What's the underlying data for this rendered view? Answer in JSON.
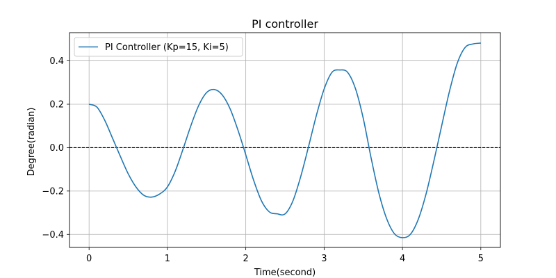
{
  "chart_data": {
    "type": "line",
    "title": "PI controller",
    "xlabel": "Time(second)",
    "ylabel": "Degree(radian)",
    "xlim": [
      -0.25,
      5.25
    ],
    "ylim": [
      -0.46,
      0.53
    ],
    "xticks": [
      0,
      1,
      2,
      3,
      4,
      5
    ],
    "xtick_labels": [
      "0",
      "1",
      "2",
      "3",
      "4",
      "5"
    ],
    "yticks": [
      -0.4,
      -0.2,
      0.0,
      0.2,
      0.4
    ],
    "ytick_labels": [
      "−0.4",
      "−0.2",
      "0.0",
      "0.2",
      "0.4"
    ],
    "grid": true,
    "legend_position": "top-left",
    "reference_line": {
      "y": 0.0,
      "style": "dashed",
      "color": "#000000"
    },
    "series": [
      {
        "name": "PI Controller (Kp=15, Ki=5)",
        "color": "#1f77b4",
        "x": [
          0,
          0.1,
          0.2,
          0.3,
          0.4,
          0.5,
          0.6,
          0.7,
          0.8,
          0.9,
          1.0,
          1.1,
          1.2,
          1.3,
          1.4,
          1.5,
          1.6,
          1.7,
          1.8,
          1.9,
          2.0,
          2.1,
          2.2,
          2.3,
          2.4,
          2.5,
          2.6,
          2.7,
          2.8,
          2.9,
          3.0,
          3.1,
          3.2,
          3.3,
          3.4,
          3.5,
          3.6,
          3.7,
          3.8,
          3.9,
          4.0,
          4.1,
          4.2,
          4.3,
          4.4,
          4.5,
          4.6,
          4.7,
          4.8,
          4.9,
          5.0
        ],
        "y": [
          0.2,
          0.187,
          0.126,
          0.043,
          -0.041,
          -0.121,
          -0.182,
          -0.22,
          -0.228,
          -0.214,
          -0.181,
          -0.108,
          -0.006,
          0.102,
          0.195,
          0.254,
          0.268,
          0.243,
          0.179,
          0.081,
          -0.033,
          -0.15,
          -0.245,
          -0.296,
          -0.305,
          -0.306,
          -0.247,
          -0.135,
          0.003,
          0.147,
          0.27,
          0.347,
          0.358,
          0.347,
          0.272,
          0.134,
          -0.048,
          -0.211,
          -0.329,
          -0.398,
          -0.415,
          -0.4,
          -0.332,
          -0.215,
          -0.063,
          0.1,
          0.26,
          0.39,
          0.462,
          0.478,
          0.482
        ]
      }
    ]
  }
}
